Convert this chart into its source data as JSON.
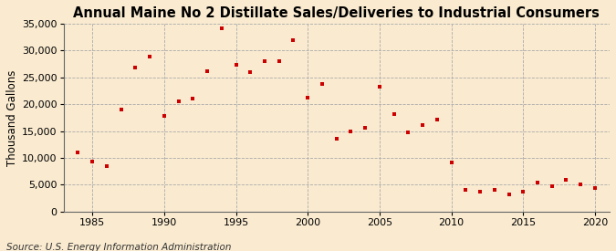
{
  "title": "Annual Maine No 2 Distillate Sales/Deliveries to Industrial Consumers",
  "ylabel": "Thousand Gallons",
  "source": "Source: U.S. Energy Information Administration",
  "background_color": "#faebd0",
  "marker_color": "#cc0000",
  "years": [
    1984,
    1985,
    1986,
    1987,
    1988,
    1989,
    1990,
    1991,
    1992,
    1993,
    1994,
    1995,
    1996,
    1997,
    1998,
    1999,
    2000,
    2001,
    2002,
    2003,
    2004,
    2005,
    2006,
    2007,
    2008,
    2009,
    2010,
    2011,
    2012,
    2013,
    2014,
    2015,
    2016,
    2017,
    2018,
    2019,
    2020
  ],
  "values": [
    11000,
    9300,
    8500,
    19000,
    26800,
    28800,
    17900,
    20600,
    21000,
    26200,
    34200,
    27300,
    26000,
    28000,
    28000,
    32000,
    21200,
    23700,
    13600,
    14900,
    15600,
    23200,
    18200,
    14700,
    16100,
    17100,
    9100,
    4100,
    3700,
    4100,
    3200,
    3700,
    5400,
    4700,
    5900,
    5000,
    4400
  ],
  "xlim": [
    1983,
    2021
  ],
  "ylim": [
    0,
    35000
  ],
  "yticks": [
    0,
    5000,
    10000,
    15000,
    20000,
    25000,
    30000,
    35000
  ],
  "xticks": [
    1985,
    1990,
    1995,
    2000,
    2005,
    2010,
    2015,
    2020
  ],
  "title_fontsize": 10.5,
  "label_fontsize": 8.5,
  "tick_fontsize": 8,
  "source_fontsize": 7.5
}
